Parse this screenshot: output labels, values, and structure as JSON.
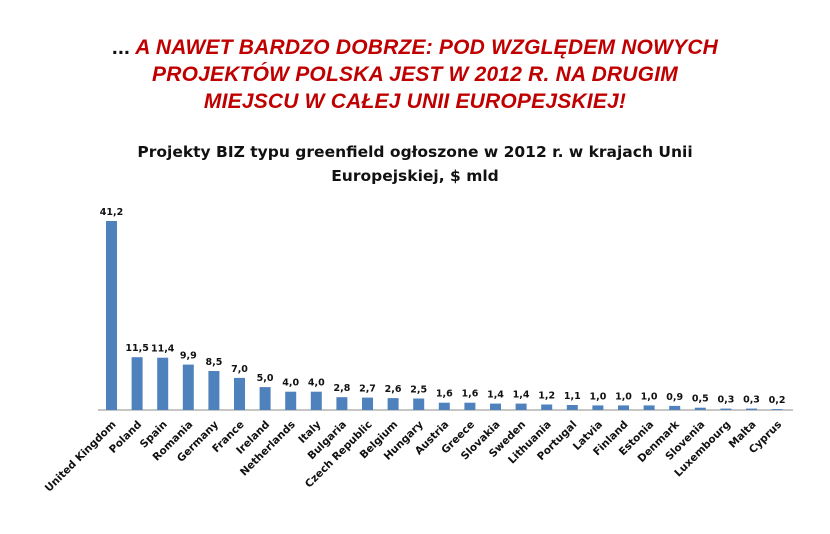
{
  "headline": {
    "lead": "...",
    "line1": "A NAWET BARDZO DOBRZE: POD WZGLĘDEM NOWYCH",
    "line2": "PROJEKTÓW  POLSKA JEST  W 2012 R. NA DRUGIM",
    "line3": "MIEJSCU W CAŁEJ UNII EUROPEJSKIEJ!"
  },
  "colors": {
    "headline": "#c00000",
    "bar": "#4f81bd"
  },
  "chart_data": {
    "type": "bar",
    "title_line1": "Projekty BIZ typu greenfield ogłoszone w 2012 r. w krajach Unii",
    "title_line2": "Europejskiej, $ mld",
    "categories": [
      "United Kingdom",
      "Poland",
      "Spain",
      "Romania",
      "Germany",
      "France",
      "Ireland",
      "Netherlands",
      "Italy",
      "Bulgaria",
      "Czech Republic",
      "Belgium",
      "Hungary",
      "Austria",
      "Greece",
      "Slovakia",
      "Sweden",
      "Lithuania",
      "Portugal",
      "Latvia",
      "Finland",
      "Estonia",
      "Denmark",
      "Slovenia",
      "Luxembourg",
      "Malta",
      "Cyprus"
    ],
    "values": [
      41.2,
      11.5,
      11.4,
      9.9,
      8.5,
      7.0,
      5.0,
      4.0,
      4.0,
      2.8,
      2.7,
      2.6,
      2.5,
      1.6,
      1.6,
      1.4,
      1.4,
      1.2,
      1.1,
      1.0,
      1.0,
      1.0,
      0.9,
      0.5,
      0.3,
      0.3,
      0.2
    ],
    "value_labels": [
      "41,2",
      "11,5",
      "11,4",
      "9,9",
      "8,5",
      "7,0",
      "5,0",
      "4,0",
      "4,0",
      "2,8",
      "2,7",
      "2,6",
      "2,5",
      "1,6",
      "1,6",
      "1,4",
      "1,4",
      "1,2",
      "1,1",
      "1,0",
      "1,0",
      "1,0",
      "0,9",
      "0,5",
      "0,3",
      "0,3",
      "0,2"
    ],
    "grid": false,
    "legend": "none"
  }
}
